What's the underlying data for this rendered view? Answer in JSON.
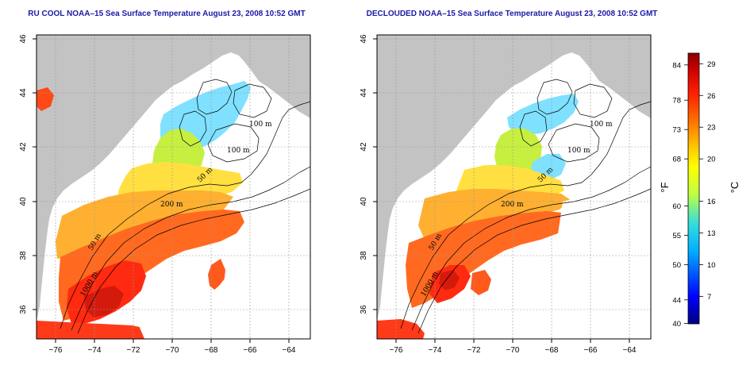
{
  "maps": [
    {
      "title": "RU COOL NOAA–15 Sea Surface Temperature August 23, 2008 10:52 GMT",
      "x_ticks": [
        "−76",
        "−74",
        "−72",
        "−70",
        "−68",
        "−66",
        "−64"
      ],
      "y_ticks": [
        "36",
        "38",
        "40",
        "42",
        "44",
        "46"
      ],
      "contour_labels": [
        "100 m",
        "100 m",
        "50 m",
        "200 m",
        "50 m",
        "1000 m"
      ]
    },
    {
      "title": "DECLOUDED NOAA–15 Sea Surface Temperature August 23, 2008 10:52 GMT",
      "x_ticks": [
        "−76",
        "−74",
        "−72",
        "−70",
        "−68",
        "−66",
        "−64"
      ],
      "y_ticks": [
        "36",
        "38",
        "40",
        "42",
        "44",
        "46"
      ],
      "contour_labels": [
        "100 m",
        "100 m",
        "50 m",
        "200 m",
        "50 m",
        "1000 m"
      ]
    }
  ],
  "colorbar": {
    "fahrenheit_unit": "°F",
    "celsius_unit": "°C",
    "fahrenheit_ticks": [
      "84",
      "78",
      "73",
      "68",
      "60",
      "55",
      "50",
      "44",
      "40"
    ],
    "celsius_ticks": [
      "29",
      "26",
      "23",
      "20",
      "16",
      "13",
      "10",
      "7"
    ],
    "colors": [
      "#000080",
      "#0000ff",
      "#00b0ff",
      "#33dddd",
      "#c0ff40",
      "#ffff00",
      "#ffc000",
      "#ff7000",
      "#ff2000",
      "#cc0000",
      "#8b0000"
    ],
    "celsius_range": [
      4.4,
      30
    ]
  },
  "colors": {
    "land": "#c3c3c3",
    "title": "#1a1aa6",
    "grid": "#999999"
  }
}
